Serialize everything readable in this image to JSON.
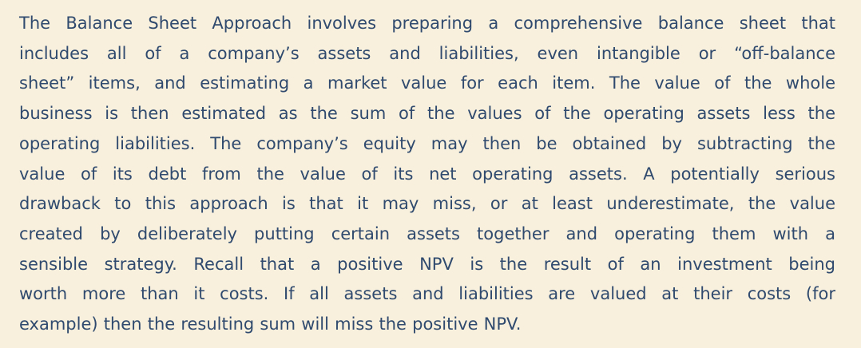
{
  "document": {
    "lines": [
      "The Balance Sheet Approach involves preparing a comprehensive balance sheet that",
      "includes all of a company’s assets and liabilities, even intangible or “off-balance",
      "sheet” items, and estimating a market value for each item. The value of the whole",
      "business is then estimated as the sum of the values of the operating assets less the",
      "operating liabilities. The company’s equity may then be obtained by subtracting the",
      "value of its debt from the value of its net operating assets. A potentially serious",
      "drawback to this approach is that it may miss, or at least underestimate, the value",
      "created by deliberately putting certain assets together and operating them with a",
      "sensible strategy. Recall that a positive NPV is the result of an investment being",
      "worth more than it costs. If all assets and liabilities are valued at their costs (for",
      "example) then the resulting sum will miss the positive NPV."
    ]
  },
  "colors": {
    "background": "#f8f0dc",
    "text": "#2f4a6e"
  }
}
